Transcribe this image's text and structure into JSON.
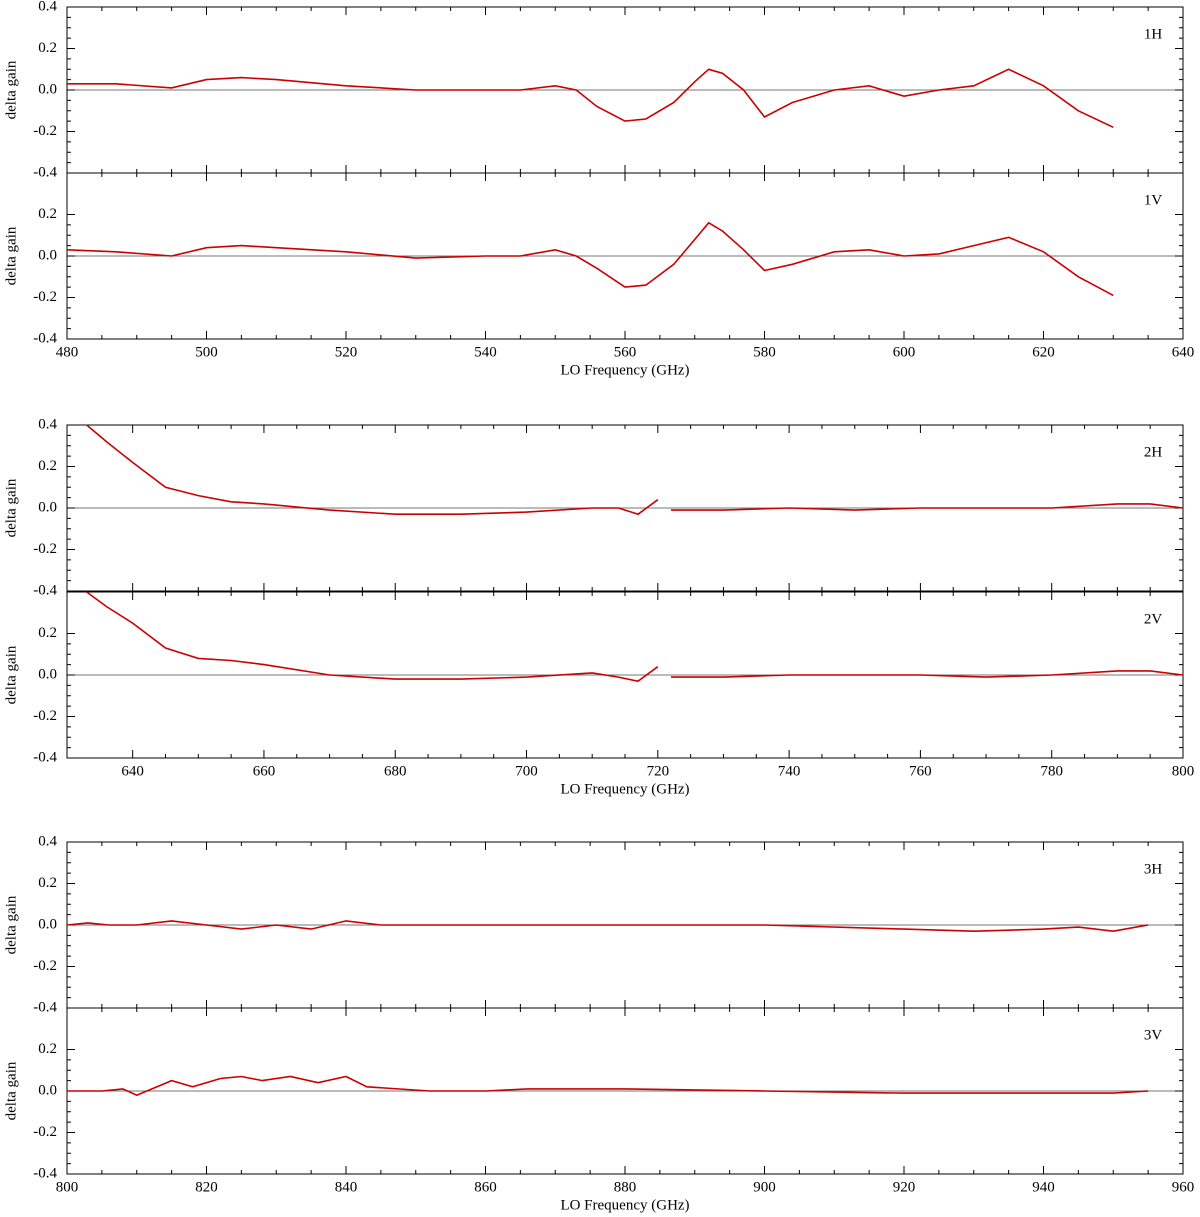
{
  "chart_data": [
    {
      "type": "line",
      "annotation": "1H",
      "ylabel": "delta gain",
      "xlim": [
        480,
        640
      ],
      "xticks": [
        480,
        500,
        520,
        540,
        560,
        580,
        600,
        620,
        640
      ],
      "ylim": [
        -0.4,
        0.4
      ],
      "yticks": [
        -0.4,
        -0.2,
        {
          "value": 0,
          "label": "0.0"
        },
        0.2,
        0.4
      ],
      "reference_line": 0,
      "x": [
        480,
        487,
        495,
        500,
        505,
        510,
        520,
        530,
        540,
        545,
        550,
        553,
        556,
        560,
        563,
        567,
        570,
        572,
        574,
        577,
        580,
        584,
        590,
        595,
        600,
        605,
        610,
        615,
        620,
        625,
        630
      ],
      "series": [
        {
          "color": "#cc0000",
          "values": [
            0.03,
            0.03,
            0.01,
            0.05,
            0.06,
            0.05,
            0.02,
            0.0,
            0.0,
            0.0,
            0.02,
            0.0,
            -0.08,
            -0.15,
            -0.14,
            -0.06,
            0.04,
            0.1,
            0.08,
            0.0,
            -0.13,
            -0.06,
            0.0,
            0.02,
            -0.03,
            0.0,
            0.02,
            0.1,
            0.02,
            -0.1,
            -0.18
          ]
        }
      ]
    },
    {
      "type": "line",
      "annotation": "1V",
      "ylabel": "delta gain",
      "xlabel": "LO Frequency (GHz)",
      "xlim": [
        480,
        640
      ],
      "xticks": [
        480,
        500,
        520,
        540,
        560,
        580,
        600,
        620,
        640
      ],
      "ylim": [
        -0.4,
        0.4
      ],
      "yticks": [
        -0.4,
        -0.2,
        {
          "value": 0,
          "label": "0.0"
        },
        0.2
      ],
      "reference_line": 0,
      "x": [
        480,
        487,
        495,
        500,
        505,
        510,
        520,
        530,
        540,
        545,
        550,
        553,
        556,
        560,
        563,
        567,
        570,
        572,
        574,
        577,
        580,
        584,
        590,
        595,
        600,
        605,
        610,
        615,
        620,
        625,
        630
      ],
      "series": [
        {
          "color": "#cc0000",
          "values": [
            0.03,
            0.02,
            0.0,
            0.04,
            0.05,
            0.04,
            0.02,
            -0.01,
            0.0,
            0.0,
            0.03,
            0.0,
            -0.06,
            -0.15,
            -0.14,
            -0.04,
            0.08,
            0.16,
            0.12,
            0.03,
            -0.07,
            -0.04,
            0.02,
            0.03,
            0.0,
            0.01,
            0.05,
            0.09,
            0.02,
            -0.1,
            -0.19
          ]
        }
      ]
    },
    {
      "type": "line",
      "annotation": "2H",
      "ylabel": "delta gain",
      "xlim": [
        630,
        800
      ],
      "xticks": [
        640,
        660,
        680,
        700,
        720,
        740,
        760,
        780,
        800
      ],
      "ylim": [
        -0.4,
        0.4
      ],
      "yticks": [
        -0.4,
        -0.2,
        {
          "value": 0,
          "label": "0.0"
        },
        0.2,
        0.4
      ],
      "reference_line": 0,
      "x": [
        633,
        636,
        640,
        645,
        650,
        655,
        660,
        670,
        680,
        690,
        700,
        710,
        714,
        717,
        720,
        721,
        722,
        730,
        740,
        750,
        760,
        770,
        780,
        790,
        795,
        800
      ],
      "series": [
        {
          "color": "#cc0000",
          "values": [
            0.4,
            0.32,
            0.22,
            0.1,
            0.06,
            0.03,
            0.02,
            -0.01,
            -0.03,
            -0.03,
            -0.02,
            0.0,
            0.0,
            -0.03,
            0.04,
            null,
            -0.01,
            -0.01,
            0.0,
            -0.01,
            0.0,
            0.0,
            0.0,
            0.02,
            0.02,
            0.0
          ]
        }
      ]
    },
    {
      "type": "line",
      "annotation": "2V",
      "ylabel": "delta gain",
      "xlabel": "LO Frequency (GHz)",
      "xlim": [
        630,
        800
      ],
      "xticks": [
        640,
        660,
        680,
        700,
        720,
        740,
        760,
        780,
        800
      ],
      "ylim": [
        -0.4,
        0.4
      ],
      "yticks": [
        -0.4,
        -0.2,
        {
          "value": 0,
          "label": "0.0"
        },
        0.2
      ],
      "reference_line": 0,
      "x": [
        633,
        636,
        640,
        645,
        650,
        655,
        660,
        670,
        680,
        690,
        700,
        710,
        714,
        717,
        720,
        721,
        722,
        730,
        740,
        750,
        760,
        770,
        780,
        790,
        795,
        800
      ],
      "series": [
        {
          "color": "#cc0000",
          "values": [
            0.4,
            0.33,
            0.25,
            0.13,
            0.08,
            0.07,
            0.05,
            0.0,
            -0.02,
            -0.02,
            -0.01,
            0.01,
            -0.01,
            -0.03,
            0.04,
            null,
            -0.01,
            -0.01,
            0.0,
            0.0,
            0.0,
            -0.01,
            0.0,
            0.02,
            0.02,
            0.0
          ]
        }
      ]
    },
    {
      "type": "line",
      "annotation": "3H",
      "ylabel": "delta gain",
      "xlim": [
        800,
        960
      ],
      "xticks": [
        800,
        820,
        840,
        860,
        880,
        900,
        920,
        940,
        960
      ],
      "ylim": [
        -0.4,
        0.4
      ],
      "yticks": [
        -0.4,
        -0.2,
        {
          "value": 0,
          "label": "0.0"
        },
        0.2,
        0.4
      ],
      "reference_line": 0,
      "x": [
        800,
        803,
        806,
        810,
        815,
        820,
        825,
        830,
        835,
        840,
        845,
        852,
        860,
        866,
        880,
        900,
        920,
        930,
        940,
        945,
        950,
        955
      ],
      "series": [
        {
          "color": "#cc0000",
          "values": [
            0.0,
            0.01,
            0.0,
            0.0,
            0.02,
            0.0,
            -0.02,
            0.0,
            -0.02,
            0.02,
            0.0,
            0.0,
            0.0,
            0.0,
            0.0,
            0.0,
            -0.02,
            -0.03,
            -0.02,
            -0.01,
            -0.03,
            0.0
          ]
        }
      ]
    },
    {
      "type": "line",
      "annotation": "3V",
      "ylabel": "delta gain",
      "xlabel": "LO Frequency (GHz)",
      "xlim": [
        800,
        960
      ],
      "xticks": [
        800,
        820,
        840,
        860,
        880,
        900,
        920,
        940,
        960
      ],
      "ylim": [
        -0.4,
        0.4
      ],
      "yticks": [
        -0.4,
        -0.2,
        {
          "value": 0,
          "label": "0.0"
        },
        0.2
      ],
      "reference_line": 0,
      "x": [
        800,
        805,
        808,
        810,
        815,
        818,
        822,
        825,
        828,
        832,
        836,
        840,
        843,
        852,
        860,
        866,
        880,
        900,
        920,
        940,
        950,
        955
      ],
      "series": [
        {
          "color": "#cc0000",
          "values": [
            0.0,
            0.0,
            0.01,
            -0.02,
            0.05,
            0.02,
            0.06,
            0.07,
            0.05,
            0.07,
            0.04,
            0.07,
            0.02,
            0.0,
            0.0,
            0.01,
            0.01,
            0.0,
            -0.01,
            -0.01,
            -0.01,
            0.0
          ]
        }
      ]
    }
  ]
}
